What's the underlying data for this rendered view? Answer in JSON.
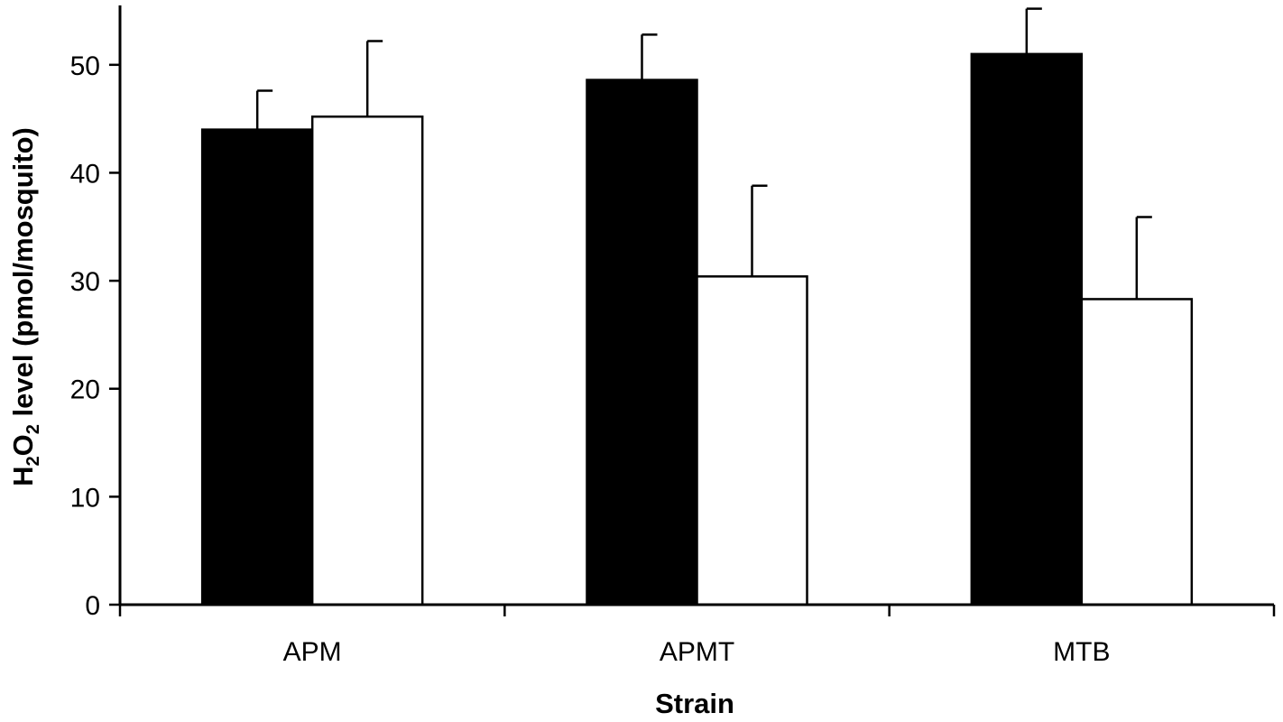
{
  "chart_data": {
    "type": "bar",
    "title": "",
    "xlabel": "Strain",
    "ylabel": {
      "parts": [
        {
          "text": "H",
          "sub": false
        },
        {
          "text": "2",
          "sub": true
        },
        {
          "text": "O",
          "sub": false
        },
        {
          "text": "2",
          "sub": true
        },
        {
          "text": " level (pmol/mosquito)",
          "sub": false
        }
      ]
    },
    "categories": [
      "APM",
      "APMT",
      "MTB"
    ],
    "ylim": [
      0,
      55
    ],
    "yticks": [
      0,
      10,
      20,
      30,
      40,
      50
    ],
    "grid": false,
    "legend": "none",
    "series": [
      {
        "fill": "#000000",
        "values": [
          44.0,
          48.6,
          51.0
        ],
        "errors": [
          3.6,
          4.2,
          4.2
        ]
      },
      {
        "fill": "#ffffff",
        "values": [
          45.2,
          30.4,
          28.3
        ],
        "errors": [
          7.0,
          8.4,
          7.6
        ]
      }
    ]
  }
}
